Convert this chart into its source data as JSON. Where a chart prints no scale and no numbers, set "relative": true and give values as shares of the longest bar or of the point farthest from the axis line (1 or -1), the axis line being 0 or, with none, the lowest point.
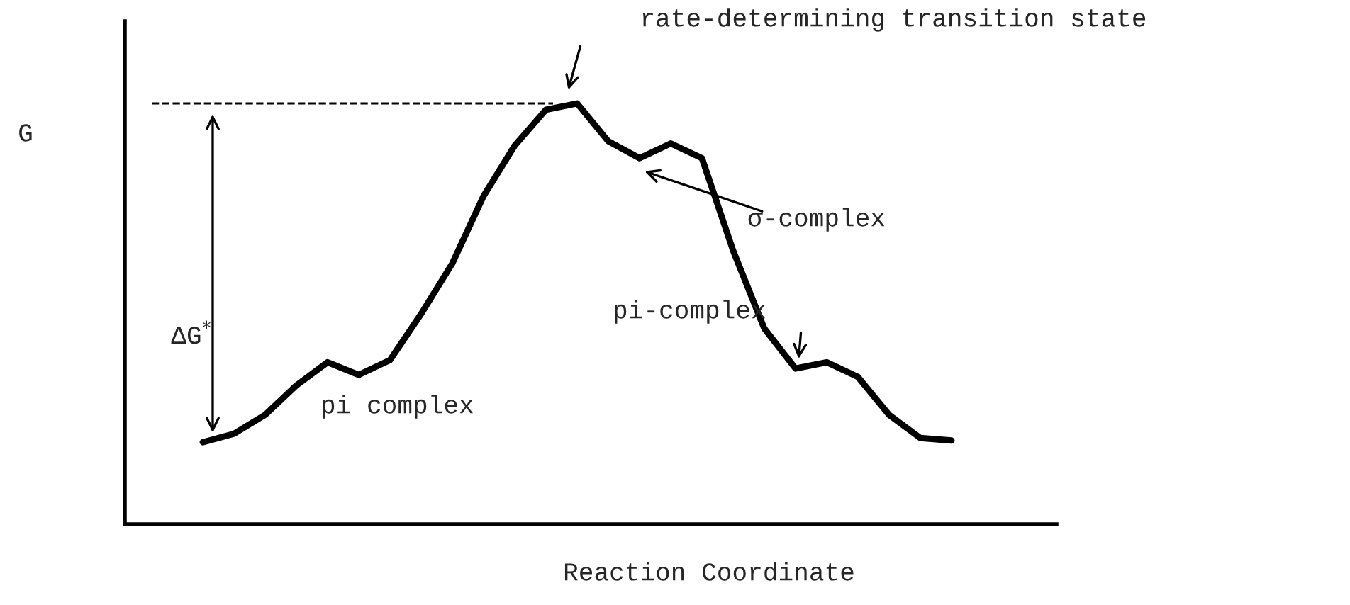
{
  "chart_data": {
    "type": "line",
    "relative": true,
    "xlabel": "Reaction Coordinate",
    "categories": [
      null,
      null,
      null,
      null,
      null,
      null,
      null,
      null,
      null,
      null,
      null,
      null,
      null,
      null,
      null,
      null,
      null,
      null,
      null,
      null,
      null,
      null,
      null,
      null,
      null
    ],
    "series": [
      {
        "color": "#000000",
        "values": [
          0.195,
          0.215,
          0.26,
          0.33,
          0.385,
          0.355,
          0.39,
          0.5,
          0.62,
          0.78,
          0.9,
          0.985,
          1.0,
          0.91,
          0.87,
          0.905,
          0.87,
          0.65,
          0.465,
          0.37,
          0.385,
          0.35,
          0.26,
          0.205,
          0.199
        ]
      }
    ],
    "ref_lines": [
      {
        "axis": "y",
        "value": 1,
        "color": "#000000",
        "line_style": "dashed"
      }
    ],
    "annotations": [
      "rate-determining transition state",
      "σ-complex",
      "pi-complex",
      "pi complex",
      "ΔG$^{*}$",
      "G"
    ]
  }
}
